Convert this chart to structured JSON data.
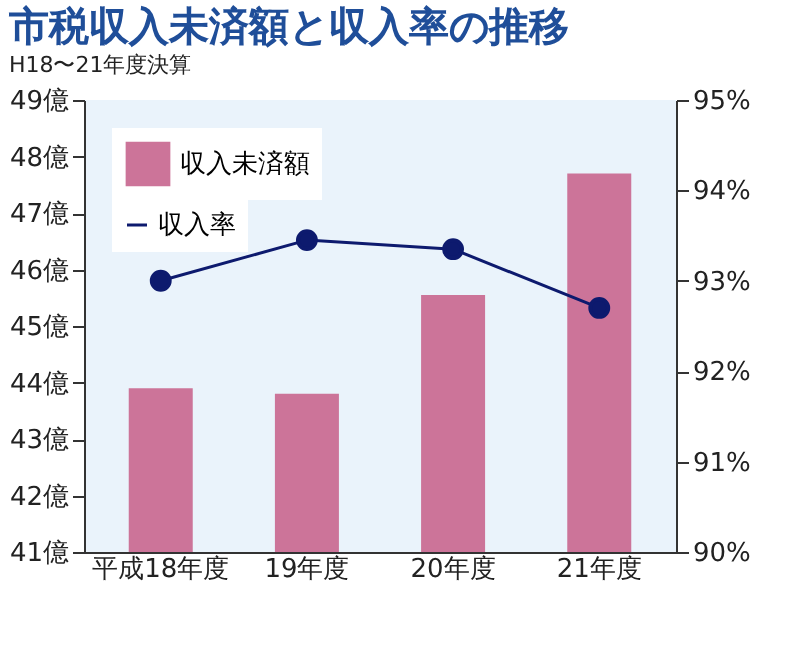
{
  "chart_data": {
    "type": "bar",
    "title": "市税収入未済額と収入率の推移",
    "subtitle": "H18〜21年度決算",
    "categories": [
      "平成18年度",
      "19年度",
      "20年度",
      "21年度"
    ],
    "series": [
      {
        "name": "収入未済額",
        "color": "#cc7499",
        "values": [
          43.9,
          43.8,
          45.55,
          47.7
        ]
      },
      {
        "name": "収入率",
        "type": "line",
        "axis": "y2",
        "color": "#0d1a6e",
        "values": [
          93.0,
          93.45,
          93.35,
          92.7
        ]
      }
    ],
    "ylim": [
      41,
      49
    ],
    "yticks": [
      {
        "value": 41,
        "label": "41億"
      },
      {
        "value": 42,
        "label": "42億"
      },
      {
        "value": 43,
        "label": "43億"
      },
      {
        "value": 44,
        "label": "44億"
      },
      {
        "value": 45,
        "label": "45億"
      },
      {
        "value": 46,
        "label": "46億"
      },
      {
        "value": 47,
        "label": "47億"
      },
      {
        "value": 48,
        "label": "48億"
      },
      {
        "value": 49,
        "label": "49億"
      }
    ],
    "y2lim": [
      90,
      95
    ],
    "y2ticks": [
      {
        "value": 90,
        "label": "90%"
      },
      {
        "value": 91,
        "label": "91%"
      },
      {
        "value": 92,
        "label": "92%"
      },
      {
        "value": 93,
        "label": "93%"
      },
      {
        "value": 94,
        "label": "94%"
      },
      {
        "value": 95,
        "label": "95%"
      }
    ],
    "legend": "top left",
    "marker": "circle",
    "grid": false
  }
}
